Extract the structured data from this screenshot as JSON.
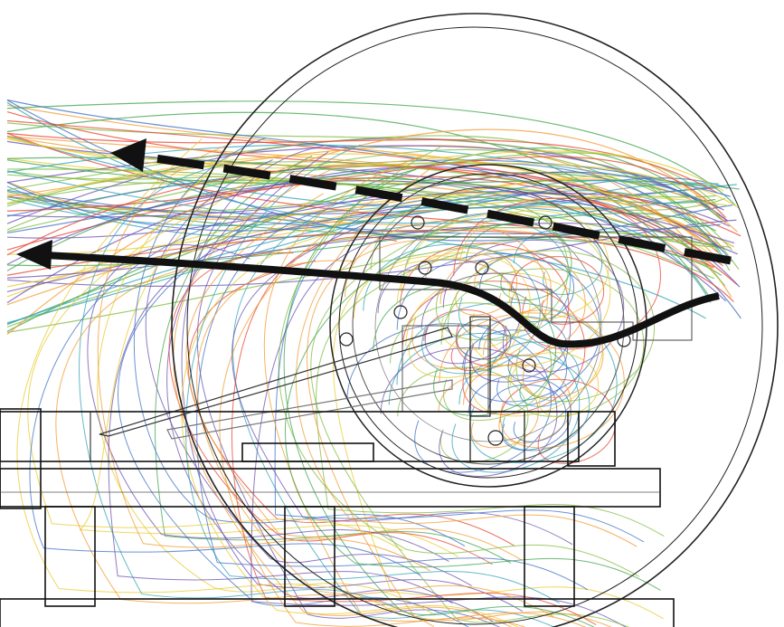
{
  "diagram": {
    "kind": "streamline flow around wheel assembly",
    "palette": [
      "#e8412e",
      "#f29a2e",
      "#e7c928",
      "#7dbb3c",
      "#3ea34a",
      "#2fa1b8",
      "#3a6fc4",
      "#6a4fb0"
    ],
    "line_color": "#111111",
    "arrows": [
      {
        "style": "dashed",
        "direction": "left"
      },
      {
        "style": "solid",
        "direction": "left"
      }
    ]
  }
}
